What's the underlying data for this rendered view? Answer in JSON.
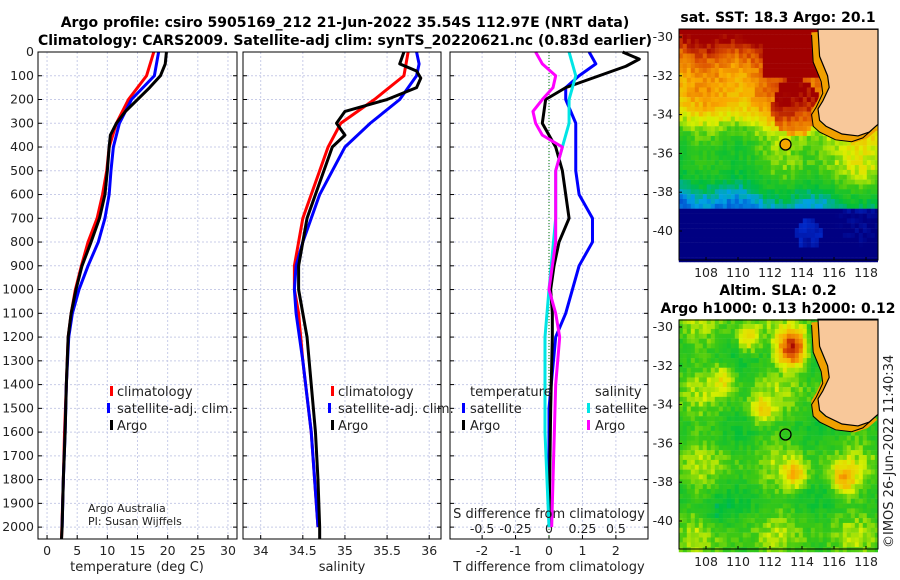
{
  "header": {
    "line1": "Argo profile: csiro 5905169_212 21-Jun-2022 35.54S 112.97E (NRT data)",
    "line2": "Climatology: CARS2009. Satellite-adj clim: synTS_20220621.nc (0.83d earlier)"
  },
  "credit": {
    "line1": "Argo Australia",
    "line2": "PI: Susan Wijffels"
  },
  "copyright": "©IMOS 26-Jun-2022 11:40:34",
  "colors": {
    "climatology": "#ff0000",
    "satellite": "#0000ff",
    "argo": "#000000",
    "sal_satellite": "#00e5e5",
    "sal_argo": "#ff00ff"
  },
  "chart_data": [
    {
      "type": "line",
      "id": "temperature",
      "xlabel": "temperature (deg C)",
      "ylabel": "",
      "xlim": [
        -1.5,
        31.5
      ],
      "ylim": [
        2050,
        0
      ],
      "xticks": [
        0,
        5,
        10,
        15,
        20,
        25,
        30
      ],
      "xticklabels": [
        "0",
        "5",
        "10",
        "15",
        "20",
        "25",
        "30"
      ],
      "yticks": [
        0,
        100,
        200,
        300,
        400,
        500,
        600,
        700,
        800,
        900,
        1000,
        1100,
        1200,
        1300,
        1400,
        1500,
        1600,
        1700,
        1800,
        1900,
        2000
      ],
      "yticklabels": [
        "0",
        "100",
        "200",
        "300",
        "400",
        "500",
        "600",
        "700",
        "800",
        "900",
        "1000",
        "1100",
        "1200",
        "1300",
        "1400",
        "1500",
        "1600",
        "1700",
        "1800",
        "1900",
        "2000"
      ],
      "grid": true,
      "legend": [
        "climatology",
        "satellite-adj. clim.",
        "Argo"
      ],
      "series": [
        {
          "name": "climatology",
          "color": "#ff0000",
          "depth": [
            0,
            100,
            200,
            300,
            400,
            500,
            600,
            700,
            800,
            900,
            1000,
            1100,
            1200,
            1400,
            1600,
            1800,
            2050
          ],
          "values": [
            17.7,
            16.5,
            13.5,
            11.5,
            10.3,
            9.9,
            9.2,
            8.3,
            6.8,
            5.7,
            4.7,
            4.0,
            3.5,
            3.2,
            2.9,
            2.7,
            2.4
          ]
        },
        {
          "name": "satellite-adj. clim.",
          "color": "#0000ff",
          "depth": [
            0,
            100,
            200,
            300,
            400,
            500,
            600,
            700,
            800,
            900,
            1000,
            1100,
            1200,
            1400,
            1600,
            1800,
            2000
          ],
          "values": [
            18.5,
            17.8,
            14.0,
            12.0,
            11.0,
            10.6,
            10.3,
            9.6,
            8.5,
            6.8,
            5.3,
            4.2,
            3.6,
            3.2,
            3.0,
            2.7,
            2.5
          ]
        },
        {
          "name": "Argo",
          "color": "#000000",
          "depth": [
            0,
            50,
            100,
            150,
            200,
            250,
            300,
            350,
            400,
            500,
            600,
            700,
            800,
            900,
            1000,
            1100,
            1200,
            1400,
            1600,
            1800,
            2000,
            2050
          ],
          "values": [
            19.8,
            19.6,
            18.8,
            17.0,
            15.0,
            13.0,
            11.5,
            10.5,
            10.3,
            10.0,
            9.6,
            8.7,
            7.3,
            5.8,
            4.8,
            4.0,
            3.5,
            3.2,
            3.0,
            2.7,
            2.5,
            2.4
          ]
        }
      ]
    },
    {
      "type": "line",
      "id": "salinity",
      "xlabel": "salinity",
      "xlim": [
        33.79,
        36.14
      ],
      "ylim": [
        2050,
        0
      ],
      "xticks": [
        34,
        34.5,
        35,
        35.5,
        36
      ],
      "xticklabels": [
        "34",
        "34.5",
        "35",
        "35.5",
        "36"
      ],
      "grid": true,
      "legend": [
        "climatology",
        "satellite-adj. clim.",
        "Argo"
      ],
      "series": [
        {
          "name": "climatology",
          "color": "#ff0000",
          "depth": [
            0,
            100,
            200,
            300,
            400,
            500,
            600,
            700,
            800,
            900,
            1000,
            1100,
            1300,
            1600,
            2000
          ],
          "values": [
            35.75,
            35.7,
            35.35,
            34.95,
            34.8,
            34.7,
            34.6,
            34.5,
            34.45,
            34.4,
            34.4,
            34.45,
            34.5,
            34.6,
            34.68
          ]
        },
        {
          "name": "satellite-adj. clim.",
          "color": "#0000ff",
          "depth": [
            0,
            50,
            100,
            200,
            300,
            400,
            500,
            600,
            700,
            800,
            900,
            1000,
            1100,
            1300,
            1600,
            2000
          ],
          "values": [
            35.85,
            35.88,
            35.85,
            35.65,
            35.3,
            35.0,
            34.85,
            34.7,
            34.6,
            34.5,
            34.42,
            34.4,
            34.42,
            34.5,
            34.6,
            34.68
          ]
        },
        {
          "name": "Argo",
          "color": "#000000",
          "depth": [
            0,
            50,
            80,
            110,
            150,
            200,
            250,
            300,
            350,
            400,
            500,
            600,
            700,
            800,
            900,
            1000,
            1100,
            1200,
            1400,
            1600,
            1800,
            2000,
            2050
          ],
          "values": [
            35.7,
            35.65,
            35.85,
            35.9,
            35.85,
            35.5,
            35.0,
            34.9,
            35.0,
            34.85,
            34.75,
            34.65,
            34.55,
            34.5,
            34.45,
            34.45,
            34.5,
            34.55,
            34.6,
            34.65,
            34.68,
            34.7,
            34.7
          ]
        }
      ]
    },
    {
      "type": "line",
      "id": "difference",
      "xlabel": "T difference from climatology",
      "x2label": "S difference from climatology",
      "xlim": [
        -2.96,
        2.96
      ],
      "x2lim": [
        -0.74,
        0.74
      ],
      "ylim": [
        2050,
        0
      ],
      "xticks": [
        -2,
        -1,
        0,
        1,
        2
      ],
      "xticklabels": [
        "-2",
        "-1",
        "0",
        "1",
        "2"
      ],
      "x2ticks": [
        -0.5,
        -0.25,
        0,
        0.25,
        0.5
      ],
      "x2ticklabels": [
        "-0.5",
        "-0.25",
        "0",
        "0.25",
        "0.5"
      ],
      "grid": true,
      "legend_temperature": {
        "title": "temperature",
        "items": [
          "satellite",
          "Argo"
        ]
      },
      "legend_salinity": {
        "title": "salinity",
        "items": [
          "satellite",
          "Argo"
        ]
      },
      "series": [
        {
          "name": "T satellite",
          "axis": "T",
          "color": "#0000ff",
          "depth": [
            0,
            50,
            100,
            150,
            200,
            300,
            500,
            600,
            700,
            800,
            900,
            1000,
            1100,
            1200,
            1500,
            2000
          ],
          "values": [
            1.2,
            1.4,
            0.9,
            0.5,
            0.5,
            0.8,
            0.8,
            0.9,
            1.3,
            1.3,
            0.9,
            0.7,
            0.5,
            0.2,
            0.0,
            0.0
          ]
        },
        {
          "name": "T Argo",
          "axis": "T",
          "color": "#000000",
          "depth": [
            0,
            30,
            60,
            100,
            150,
            200,
            300,
            400,
            500,
            600,
            700,
            800,
            900,
            1000,
            1100,
            1200,
            1500,
            2000
          ],
          "values": [
            2.2,
            2.7,
            2.3,
            1.5,
            0.5,
            -0.1,
            -0.2,
            0.2,
            0.4,
            0.5,
            0.6,
            0.3,
            0.15,
            0.05,
            0.1,
            0.1,
            0.05,
            0.0
          ]
        },
        {
          "name": "S satellite",
          "axis": "S",
          "color": "#00e5e5",
          "depth": [
            0,
            100,
            200,
            300,
            400,
            500,
            700,
            1000,
            1200,
            1600,
            2000
          ],
          "values": [
            0.15,
            0.2,
            0.15,
            0.15,
            0.1,
            0.05,
            0.05,
            0.0,
            -0.03,
            -0.03,
            0.0
          ]
        },
        {
          "name": "S Argo",
          "axis": "S",
          "color": "#ff00ff",
          "depth": [
            0,
            50,
            100,
            150,
            200,
            250,
            300,
            350,
            400,
            500,
            600,
            800,
            1000,
            1100,
            1200,
            1400,
            2000
          ],
          "values": [
            -0.1,
            -0.05,
            0.05,
            0.03,
            -0.05,
            -0.12,
            -0.1,
            -0.05,
            0.1,
            0.05,
            0.05,
            0.05,
            0.0,
            0.05,
            0.08,
            0.05,
            0.02
          ]
        }
      ]
    },
    {
      "type": "heatmap",
      "id": "sst-map",
      "title": "sat. SST: 18.3 Argo: 20.1",
      "xlim": [
        106.3,
        118.75
      ],
      "ylim": [
        -41.5,
        -29.6
      ],
      "xticks": [
        108,
        110,
        112,
        114,
        116,
        118
      ],
      "xticklabels": [
        "108",
        "110",
        "112",
        "114",
        "116",
        "118"
      ],
      "yticks": [
        -30,
        -32,
        -34,
        -36,
        -38,
        -40
      ],
      "yticklabels": [
        "-30",
        "-32",
        "-34",
        "-36",
        "-38",
        "-40"
      ],
      "float_position": {
        "lon": 112.97,
        "lat": -35.54
      }
    },
    {
      "type": "heatmap",
      "id": "sla-map",
      "title": "Altim. SLA: 0.2",
      "subtitle": "Argo h1000: 0.13 h2000: 0.12",
      "xlim": [
        106.3,
        118.75
      ],
      "ylim": [
        -41.5,
        -29.6
      ],
      "xticks": [
        108,
        110,
        112,
        114,
        116,
        118
      ],
      "xticklabels": [
        "108",
        "110",
        "112",
        "114",
        "116",
        "118"
      ],
      "yticks": [
        -30,
        -32,
        -34,
        -36,
        -38,
        -40
      ],
      "yticklabels": [
        "-30",
        "-32",
        "-34",
        "-36",
        "-38",
        "-40"
      ],
      "float_position": {
        "lon": 112.97,
        "lat": -35.54
      }
    }
  ]
}
